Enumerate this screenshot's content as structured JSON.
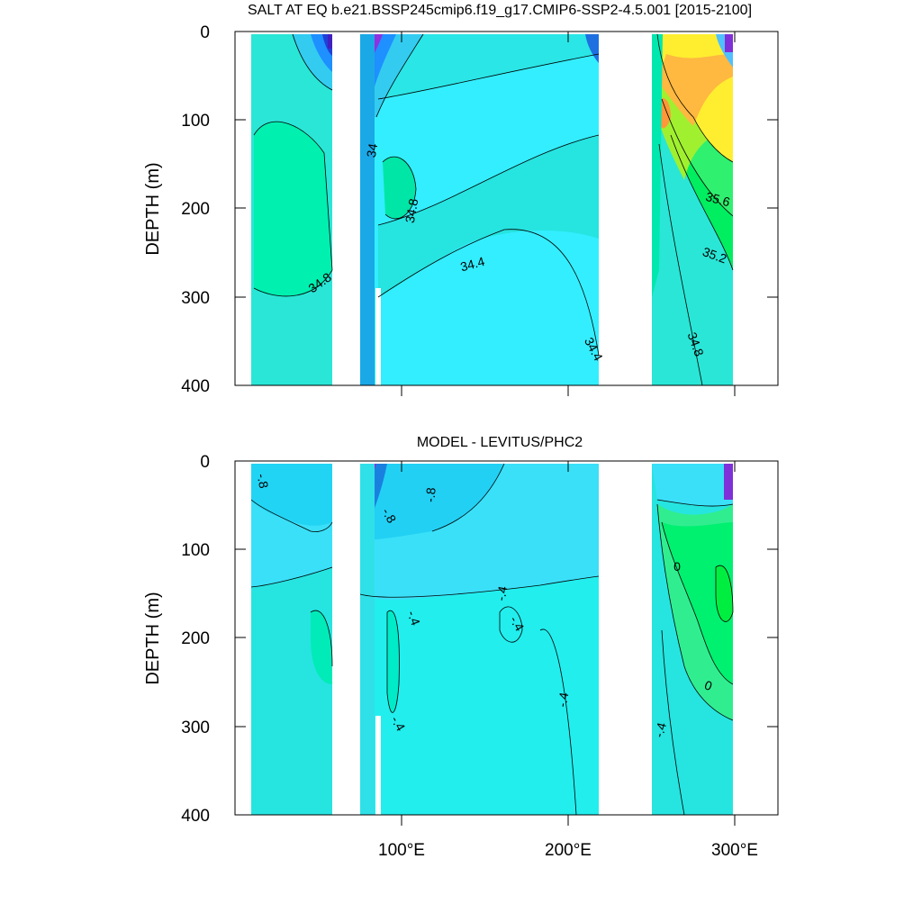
{
  "chart_data": [
    {
      "type": "contour",
      "title": "SALT AT EQ b.e21.BSSP245cmip6.f19_g17.CMIP6-SSP2-4.5.001 [2015-2100]",
      "ylabel": "DEPTH (m)",
      "xlabel": "",
      "xlim": [
        0,
        325
      ],
      "ylim": [
        400,
        0
      ],
      "y_ticks": [
        0,
        100,
        200,
        300,
        400
      ],
      "y_tick_labels": [
        "0",
        "100",
        "200",
        "300",
        "400"
      ],
      "x_major_ticks": [
        0,
        100,
        200,
        300
      ],
      "x_tick_labels": [
        "",
        "",
        ""
      ],
      "land_gaps_lon": [
        [
          60,
          77
        ],
        [
          220,
          251
        ],
        [
          299,
          325
        ]
      ],
      "ocean_colors": {
        "Indian": "#33e6e6",
        "Pacific": "#33eeff",
        "Atlantic_deep": "#00e6a6",
        "Atlantic_upper": "#ffe060"
      },
      "contour_labels": [
        {
          "text": "34",
          "lon": 86,
          "depth": 135
        },
        {
          "text": "34.8",
          "lon": 95,
          "depth": 218
        },
        {
          "text": "34.8",
          "lon": 52,
          "depth": 312
        },
        {
          "text": "34.4",
          "lon": 150,
          "depth": 262
        },
        {
          "text": "34.4",
          "lon": 211,
          "depth": 357
        },
        {
          "text": "35.6",
          "lon": 286,
          "depth": 192
        },
        {
          "text": "35.2",
          "lon": 285,
          "depth": 254
        },
        {
          "text": "34.8",
          "lon": 276,
          "depth": 352
        }
      ]
    },
    {
      "type": "contour",
      "title": "MODEL - LEVITUS/PHC2",
      "ylabel": "DEPTH (m)",
      "xlabel": "",
      "xlim": [
        0,
        325
      ],
      "ylim": [
        400,
        0
      ],
      "y_ticks": [
        0,
        100,
        200,
        300,
        400
      ],
      "y_tick_labels": [
        "0",
        "100",
        "200",
        "300",
        "400"
      ],
      "x_major_ticks": [
        0,
        100,
        200,
        300
      ],
      "x_tick_labels": [
        "100°E",
        "200°E",
        "300°E"
      ],
      "land_gaps_lon": [
        [
          60,
          77
        ],
        [
          220,
          251
        ],
        [
          299,
          325
        ]
      ],
      "contour_labels": [
        {
          "text": "-.8",
          "lon": 14,
          "depth": 22
        },
        {
          "text": "-.8",
          "lon": 120,
          "depth": 38
        },
        {
          "text": "-.8",
          "lon": 90,
          "depth": 62
        },
        {
          "text": "-.4",
          "lon": 160,
          "depth": 152
        },
        {
          "text": "-.4",
          "lon": 167,
          "depth": 182
        },
        {
          "text": "-.4",
          "lon": 101,
          "depth": 175
        },
        {
          "text": "-.4",
          "lon": 199,
          "depth": 265
        },
        {
          "text": "-.4",
          "lon": 101,
          "depth": 298
        },
        {
          "text": "-.4",
          "lon": 257,
          "depth": 300
        },
        {
          "text": "0",
          "lon": 268,
          "depth": 118
        },
        {
          "text": "0",
          "lon": 285,
          "depth": 248
        }
      ]
    }
  ]
}
